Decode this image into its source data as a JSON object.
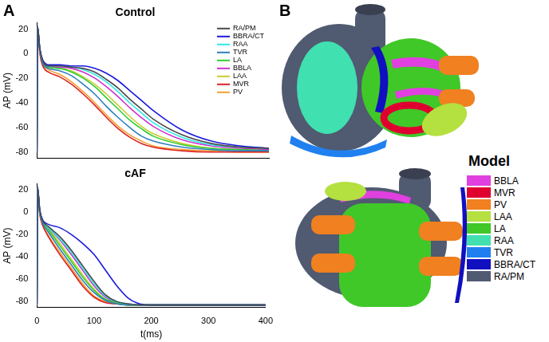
{
  "panel_labels": [
    "A",
    "B"
  ],
  "chart_data": [
    {
      "type": "line",
      "title": "Control",
      "y_label": "AP (mV)",
      "x": [
        0,
        1,
        5,
        10,
        20,
        40,
        60,
        80,
        100,
        120,
        140,
        160,
        180,
        200,
        250,
        300,
        350,
        400
      ],
      "xlim": [
        0,
        400
      ],
      "xticks": [
        0,
        100,
        200,
        300,
        400
      ],
      "ylim": [
        -85,
        25
      ],
      "yticks": [
        -80,
        -60,
        -40,
        -20,
        0,
        20
      ],
      "grid": false,
      "tick_labels": "y",
      "legend": "upper right",
      "series": [
        {
          "name": "RA/PM",
          "color": "#4a4a4a",
          "values": [
            -80,
            22,
            4,
            -6,
            -10,
            -10,
            -11,
            -12,
            -15,
            -21,
            -28,
            -37,
            -45,
            -53,
            -66,
            -73,
            -76,
            -77
          ]
        },
        {
          "name": "BBRA/CT",
          "color": "#1a1adc",
          "values": [
            -80,
            22,
            4,
            -5,
            -9,
            -9,
            -10,
            -10,
            -12,
            -16,
            -22,
            -30,
            -38,
            -46,
            -62,
            -71,
            -75,
            -77
          ]
        },
        {
          "name": "RAA",
          "color": "#33e6e6",
          "values": [
            -80,
            22,
            4,
            -6,
            -10,
            -10,
            -11,
            -13,
            -17,
            -23,
            -31,
            -40,
            -48,
            -56,
            -68,
            -74,
            -76,
            -77
          ]
        },
        {
          "name": "TVR",
          "color": "#2e7fbf",
          "values": [
            -80,
            22,
            3,
            -8,
            -12,
            -14,
            -18,
            -25,
            -33,
            -43,
            -52,
            -60,
            -67,
            -71,
            -76,
            -78,
            -79,
            -79
          ]
        },
        {
          "name": "LA",
          "color": "#33cc33",
          "values": [
            -80,
            22,
            3,
            -7,
            -11,
            -12,
            -15,
            -20,
            -27,
            -36,
            -45,
            -54,
            -61,
            -67,
            -74,
            -77,
            -78,
            -79
          ]
        },
        {
          "name": "BBLA",
          "color": "#cc33cc",
          "values": [
            -80,
            22,
            4,
            -6,
            -10,
            -11,
            -12,
            -15,
            -20,
            -27,
            -35,
            -44,
            -52,
            -59,
            -70,
            -75,
            -77,
            -78
          ]
        },
        {
          "name": "LAA",
          "color": "#c8cc33",
          "values": [
            -80,
            22,
            3,
            -7,
            -11,
            -12,
            -14,
            -19,
            -25,
            -33,
            -42,
            -51,
            -59,
            -65,
            -73,
            -77,
            -78,
            -79
          ]
        },
        {
          "name": "MVR",
          "color": "#dd2222",
          "values": [
            -80,
            22,
            0,
            -10,
            -15,
            -19,
            -25,
            -33,
            -42,
            -52,
            -61,
            -68,
            -73,
            -76,
            -79,
            -80,
            -80,
            -80
          ]
        },
        {
          "name": "PV",
          "color": "#f2a033",
          "values": [
            -80,
            22,
            2,
            -8,
            -13,
            -17,
            -23,
            -31,
            -40,
            -50,
            -59,
            -66,
            -71,
            -75,
            -78,
            -79,
            -80,
            -80
          ]
        }
      ]
    },
    {
      "type": "line",
      "title": "cAF",
      "y_label": "AP (mV)",
      "x_label": "t(ms)",
      "x": [
        0,
        1,
        5,
        10,
        20,
        40,
        60,
        80,
        100,
        120,
        140,
        160,
        180,
        200,
        250,
        300,
        350,
        400
      ],
      "xlim": [
        0,
        400
      ],
      "xticks": [
        0,
        100,
        200,
        300,
        400
      ],
      "ylim": [
        -85,
        25
      ],
      "yticks": [
        -80,
        -60,
        -40,
        -20,
        0,
        20
      ],
      "grid": false,
      "series": [
        {
          "color": "#4a4a4a",
          "values": [
            -83,
            22,
            1,
            -8,
            -13,
            -22,
            -34,
            -48,
            -62,
            -74,
            -80,
            -82,
            -83,
            -83,
            -83,
            -83,
            -83,
            -83
          ]
        },
        {
          "color": "#1a1adc",
          "values": [
            -83,
            22,
            2,
            -7,
            -11,
            -14,
            -20,
            -28,
            -38,
            -52,
            -66,
            -77,
            -82,
            -83,
            -83,
            -83,
            -83,
            -83
          ]
        },
        {
          "color": "#33e6e6",
          "values": [
            -83,
            22,
            1,
            -8,
            -14,
            -24,
            -36,
            -50,
            -64,
            -75,
            -80,
            -82,
            -83,
            -83,
            -83,
            -83,
            -83,
            -83
          ]
        },
        {
          "color": "#2e7fbf",
          "values": [
            -83,
            22,
            -1,
            -10,
            -18,
            -33,
            -47,
            -61,
            -72,
            -79,
            -82,
            -83,
            -83,
            -83,
            -83,
            -83,
            -83,
            -83
          ]
        },
        {
          "color": "#33cc33",
          "values": [
            -83,
            22,
            0,
            -9,
            -16,
            -30,
            -44,
            -58,
            -70,
            -78,
            -81,
            -83,
            -83,
            -83,
            -83,
            -83,
            -83,
            -83
          ]
        },
        {
          "color": "#cc33cc",
          "values": [
            -83,
            22,
            1,
            -8,
            -14,
            -25,
            -38,
            -52,
            -66,
            -76,
            -81,
            -82,
            -83,
            -83,
            -83,
            -83,
            -83,
            -83
          ]
        },
        {
          "color": "#c8cc33",
          "values": [
            -83,
            22,
            0,
            -9,
            -15,
            -28,
            -42,
            -56,
            -69,
            -78,
            -81,
            -83,
            -83,
            -83,
            -83,
            -83,
            -83,
            -83
          ]
        },
        {
          "color": "#dd2222",
          "values": [
            -83,
            22,
            -2,
            -12,
            -22,
            -38,
            -52,
            -66,
            -76,
            -81,
            -82,
            -83,
            -83,
            -83,
            -83,
            -83,
            -83,
            -83
          ]
        },
        {
          "color": "#f2a033",
          "values": [
            -83,
            22,
            -2,
            -11,
            -21,
            -36,
            -50,
            -64,
            -75,
            -80,
            -82,
            -83,
            -83,
            -83,
            -83,
            -83,
            -83,
            -83
          ]
        }
      ]
    }
  ],
  "model_legend": {
    "title": "Model",
    "items": [
      {
        "name": "BBLA",
        "color": "#e040e0"
      },
      {
        "name": "MVR",
        "color": "#e00030"
      },
      {
        "name": "PV",
        "color": "#f08020"
      },
      {
        "name": "LAA",
        "color": "#b4e040"
      },
      {
        "name": "LA",
        "color": "#40c828"
      },
      {
        "name": "RAA",
        "color": "#40e0b0"
      },
      {
        "name": "TVR",
        "color": "#2080f0"
      },
      {
        "name": "BBRA/CT",
        "color": "#1010c0"
      },
      {
        "name": "RA/PM",
        "color": "#505a70"
      }
    ]
  }
}
